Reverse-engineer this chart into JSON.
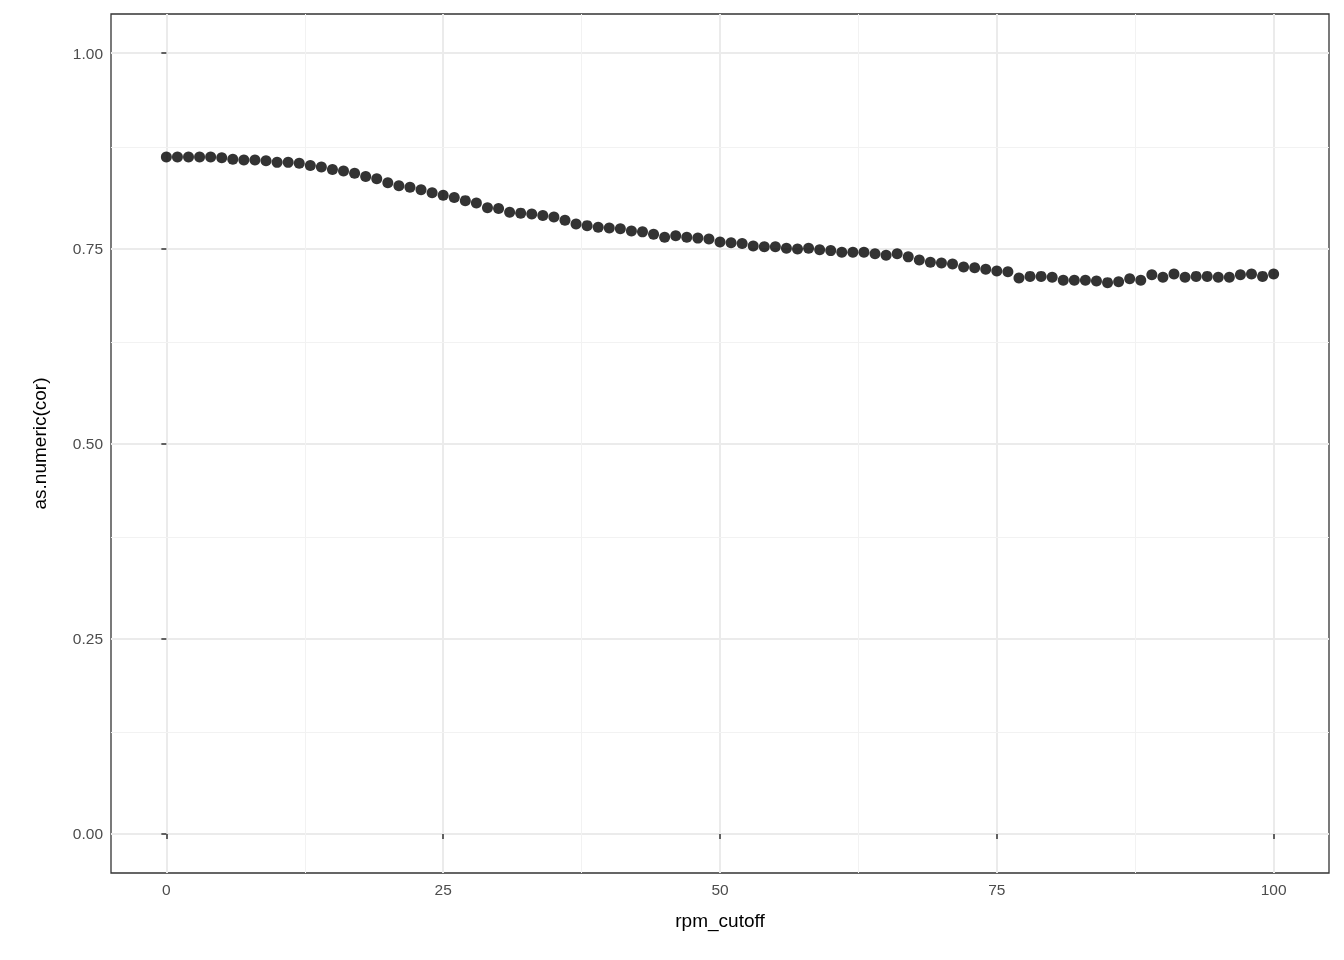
{
  "chart_data": {
    "type": "scatter",
    "xlabel": "rpm_cutoff",
    "ylabel": "as.numeric(cor)",
    "x": [
      0,
      1,
      2,
      3,
      4,
      5,
      6,
      7,
      8,
      9,
      10,
      11,
      12,
      13,
      14,
      15,
      16,
      17,
      18,
      19,
      20,
      21,
      22,
      23,
      24,
      25,
      26,
      27,
      28,
      29,
      30,
      31,
      32,
      33,
      34,
      35,
      36,
      37,
      38,
      39,
      40,
      41,
      42,
      43,
      44,
      45,
      46,
      47,
      48,
      49,
      50,
      51,
      52,
      53,
      54,
      55,
      56,
      57,
      58,
      59,
      60,
      61,
      62,
      63,
      64,
      65,
      66,
      67,
      68,
      69,
      70,
      71,
      72,
      73,
      74,
      75,
      76,
      77,
      78,
      79,
      80,
      81,
      82,
      83,
      84,
      85,
      86,
      87,
      88,
      89,
      90,
      91,
      92,
      93,
      94,
      95,
      96,
      97,
      98,
      99,
      100
    ],
    "series": [
      {
        "color": "#000000",
        "values": [
          0.867,
          0.867,
          0.867,
          0.867,
          0.867,
          0.866,
          0.864,
          0.863,
          0.863,
          0.862,
          0.86,
          0.86,
          0.859,
          0.856,
          0.854,
          0.851,
          0.849,
          0.846,
          0.842,
          0.839,
          0.834,
          0.83,
          0.828,
          0.825,
          0.821,
          0.818,
          0.815,
          0.811,
          0.808,
          0.802,
          0.801,
          0.796,
          0.795,
          0.794,
          0.792,
          0.79,
          0.786,
          0.781,
          0.779,
          0.777,
          0.776,
          0.775,
          0.772,
          0.771,
          0.768,
          0.764,
          0.766,
          0.764,
          0.763,
          0.762,
          0.758,
          0.757,
          0.756,
          0.753,
          0.752,
          0.752,
          0.75,
          0.749,
          0.75,
          0.748,
          0.747,
          0.745,
          0.745,
          0.745,
          0.743,
          0.741,
          0.743,
          0.739,
          0.735,
          0.732,
          0.731,
          0.73,
          0.726,
          0.725,
          0.723,
          0.721,
          0.72,
          0.712,
          0.714,
          0.714,
          0.713,
          0.709,
          0.709,
          0.709,
          0.708,
          0.706,
          0.707,
          0.711,
          0.709,
          0.716,
          0.713,
          0.717,
          0.713,
          0.714,
          0.714,
          0.713,
          0.713,
          0.716,
          0.717,
          0.714,
          0.717
        ]
      }
    ],
    "xlim": [
      -5,
      105
    ],
    "xticks": [
      0,
      25,
      50,
      75,
      100
    ],
    "ylim": [
      -0.05,
      1.05
    ],
    "yticks": [
      {
        "value": 0,
        "label": "0.00"
      },
      {
        "value": 0.25,
        "label": "0.25"
      },
      {
        "value": 0.5,
        "label": "0.50"
      },
      {
        "value": 0.75,
        "label": "0.75"
      },
      {
        "value": 1,
        "label": "1.00"
      }
    ],
    "grid": true,
    "marker": "circle"
  }
}
